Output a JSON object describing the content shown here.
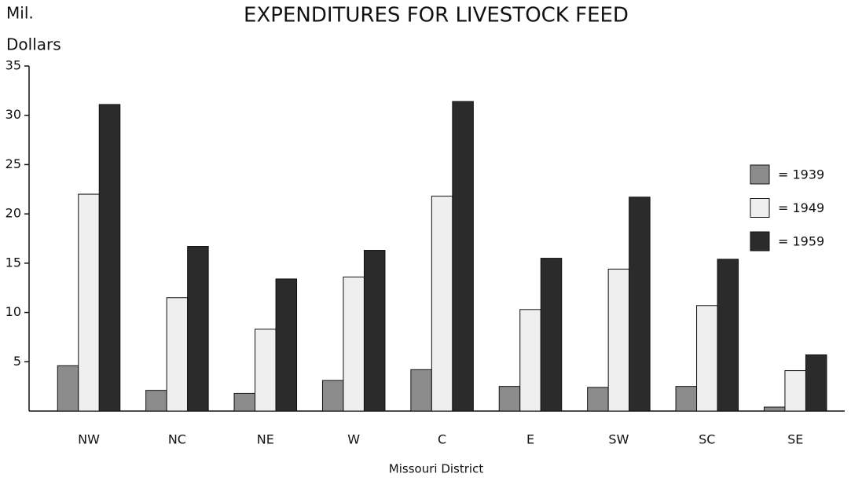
{
  "chart_data": {
    "type": "bar",
    "title": "EXPENDITURES FOR LIVESTOCK FEED",
    "ylabel": [
      "Mil.",
      "Dollars"
    ],
    "xlabel": "Missouri District",
    "categories": [
      "NW",
      "NC",
      "NE",
      "W",
      "C",
      "E",
      "SW",
      "SC",
      "SE"
    ],
    "series": [
      {
        "name": "= 1939",
        "color": "#8c8c8c",
        "values": [
          4.6,
          2.1,
          1.8,
          3.1,
          4.2,
          2.5,
          2.4,
          2.5,
          0.4
        ]
      },
      {
        "name": "= 1949",
        "color": "#efefef",
        "values": [
          22.0,
          11.5,
          8.3,
          13.6,
          21.8,
          10.3,
          14.4,
          10.7,
          4.1
        ]
      },
      {
        "name": "= 1959",
        "color": "#2b2b2b",
        "values": [
          31.1,
          16.7,
          13.4,
          16.3,
          31.4,
          15.5,
          21.7,
          15.4,
          5.7
        ]
      }
    ],
    "ylim": [
      0,
      35
    ],
    "yticks": [
      5,
      10,
      15,
      20,
      25,
      30,
      35
    ],
    "grid": false,
    "legend": "right"
  }
}
